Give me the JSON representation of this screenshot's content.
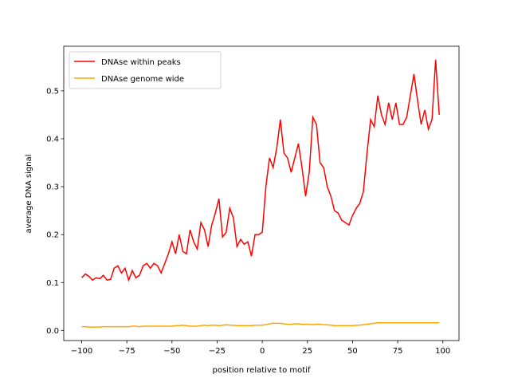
{
  "chart_data": {
    "type": "line",
    "xlabel": "position relative to motif",
    "ylabel": "average DNA signal",
    "x": [
      -100,
      -98,
      -96,
      -94,
      -92,
      -90,
      -88,
      -86,
      -84,
      -82,
      -80,
      -78,
      -76,
      -74,
      -72,
      -70,
      -68,
      -66,
      -64,
      -62,
      -60,
      -58,
      -56,
      -54,
      -52,
      -50,
      -48,
      -46,
      -44,
      -42,
      -40,
      -38,
      -36,
      -34,
      -32,
      -30,
      -28,
      -26,
      -24,
      -22,
      -20,
      -18,
      -16,
      -14,
      -12,
      -10,
      -8,
      -6,
      -4,
      -2,
      0,
      2,
      4,
      6,
      8,
      10,
      12,
      14,
      16,
      18,
      20,
      22,
      24,
      26,
      28,
      30,
      32,
      34,
      36,
      38,
      40,
      42,
      44,
      46,
      48,
      50,
      52,
      54,
      56,
      58,
      60,
      62,
      64,
      66,
      68,
      70,
      72,
      74,
      76,
      78,
      80,
      82,
      84,
      86,
      88,
      90,
      92,
      94,
      96,
      98
    ],
    "series": [
      {
        "name": "DNAse within peaks",
        "color": "#ff0000",
        "values": [
          0.11,
          0.118,
          0.113,
          0.105,
          0.11,
          0.108,
          0.115,
          0.105,
          0.107,
          0.13,
          0.135,
          0.12,
          0.13,
          0.105,
          0.125,
          0.11,
          0.115,
          0.135,
          0.14,
          0.13,
          0.14,
          0.135,
          0.12,
          0.14,
          0.16,
          0.185,
          0.16,
          0.2,
          0.165,
          0.16,
          0.21,
          0.185,
          0.17,
          0.225,
          0.21,
          0.175,
          0.22,
          0.245,
          0.275,
          0.195,
          0.205,
          0.255,
          0.235,
          0.175,
          0.19,
          0.18,
          0.185,
          0.155,
          0.2,
          0.2,
          0.205,
          0.3,
          0.36,
          0.34,
          0.38,
          0.44,
          0.37,
          0.36,
          0.33,
          0.36,
          0.39,
          0.34,
          0.28,
          0.33,
          0.445,
          0.43,
          0.35,
          0.34,
          0.3,
          0.28,
          0.25,
          0.245,
          0.23,
          0.225,
          0.22,
          0.24,
          0.255,
          0.265,
          0.29,
          0.37,
          0.44,
          0.425,
          0.49,
          0.45,
          0.43,
          0.475,
          0.44,
          0.475,
          0.43,
          0.43,
          0.445,
          0.49,
          0.535,
          0.48,
          0.43,
          0.46,
          0.42,
          0.44,
          0.565,
          0.45
        ]
      },
      {
        "name": "DNAse genome wide",
        "color": "#ffa500",
        "values": [
          0.008,
          0.008,
          0.007,
          0.007,
          0.007,
          0.007,
          0.008,
          0.008,
          0.008,
          0.008,
          0.008,
          0.008,
          0.008,
          0.008,
          0.009,
          0.009,
          0.008,
          0.009,
          0.009,
          0.009,
          0.009,
          0.009,
          0.009,
          0.009,
          0.009,
          0.009,
          0.01,
          0.01,
          0.011,
          0.01,
          0.009,
          0.009,
          0.009,
          0.01,
          0.011,
          0.01,
          0.011,
          0.011,
          0.01,
          0.011,
          0.012,
          0.011,
          0.011,
          0.01,
          0.01,
          0.01,
          0.01,
          0.01,
          0.011,
          0.011,
          0.011,
          0.012,
          0.014,
          0.015,
          0.015,
          0.015,
          0.014,
          0.013,
          0.013,
          0.014,
          0.014,
          0.013,
          0.013,
          0.013,
          0.012,
          0.013,
          0.013,
          0.012,
          0.012,
          0.011,
          0.01,
          0.01,
          0.01,
          0.01,
          0.01,
          0.01,
          0.011,
          0.011,
          0.012,
          0.013,
          0.014,
          0.015,
          0.016,
          0.016,
          0.016,
          0.016,
          0.016,
          0.016,
          0.016,
          0.016,
          0.016,
          0.016,
          0.016,
          0.016,
          0.016,
          0.016,
          0.016,
          0.016,
          0.016,
          0.016
        ]
      }
    ],
    "xlim": [
      -109.95,
      108.95
    ],
    "ylim": [
      -0.021,
      0.593
    ],
    "xticks": [
      {
        "value": -100,
        "label": "−100"
      },
      {
        "value": -75,
        "label": "−75"
      },
      {
        "value": -50,
        "label": "−50"
      },
      {
        "value": -25,
        "label": "−25"
      },
      0,
      25,
      50,
      75,
      100
    ],
    "yticks": [
      {
        "value": 0,
        "label": "0.0"
      },
      0.1,
      0.2,
      0.3,
      0.4,
      0.5
    ],
    "legend": "upper left"
  }
}
